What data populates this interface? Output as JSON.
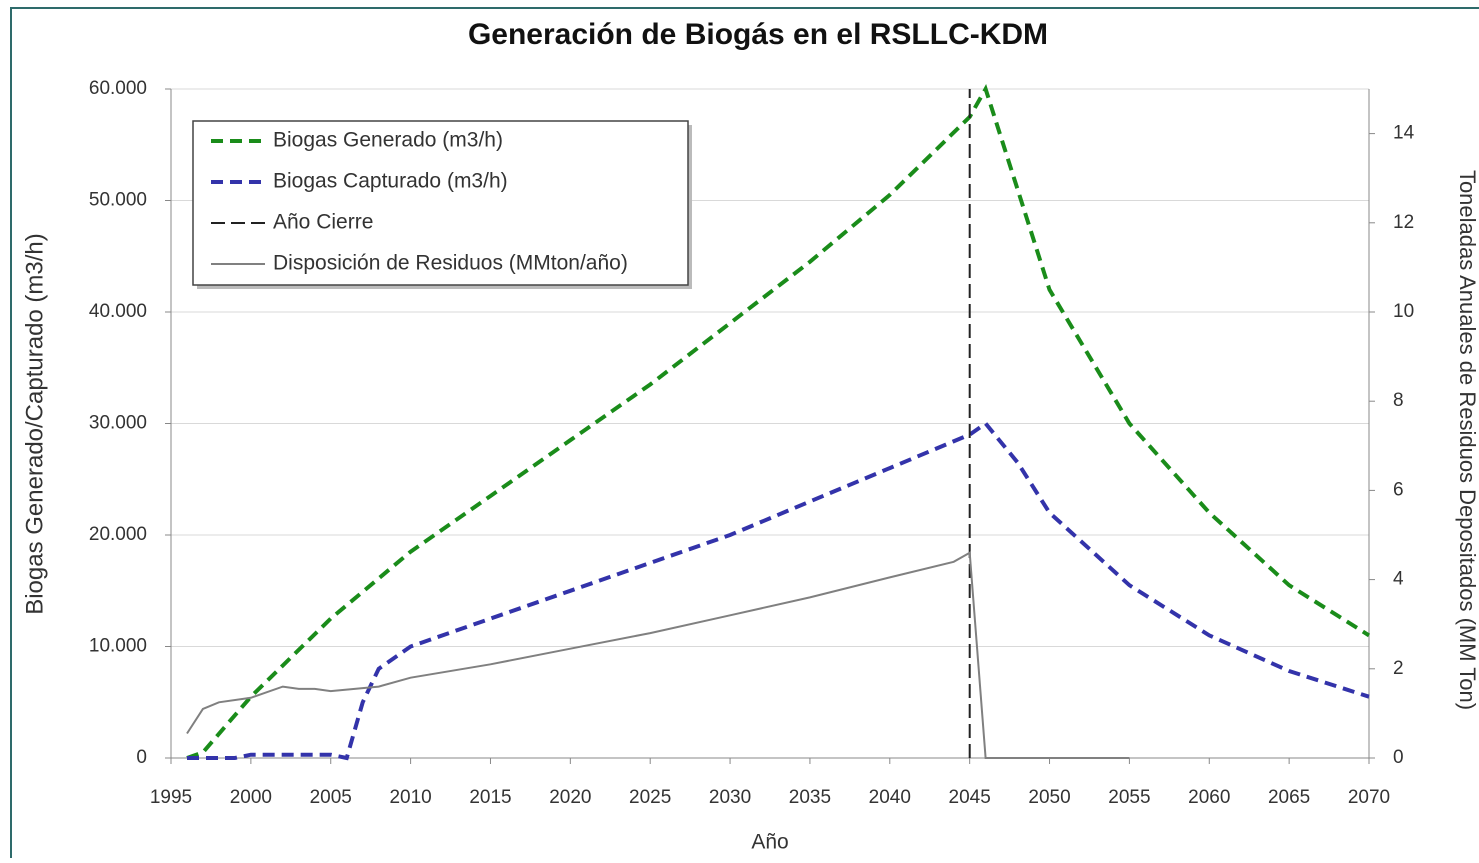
{
  "chart_data": {
    "type": "line",
    "title": "Generación de Biogás en el RSLLC-KDM",
    "x_label": "Año",
    "y_label": "Biogas Generado/Capturado (m3/h)",
    "y2_label": "Toneladas Anuales de Residuos Depositados (MM Ton)",
    "xlim": [
      1995,
      2070
    ],
    "xticks": [
      1995,
      2000,
      2005,
      2010,
      2015,
      2020,
      2025,
      2030,
      2035,
      2040,
      2045,
      2050,
      2055,
      2060,
      2065,
      2070
    ],
    "ylim": [
      0,
      60000
    ],
    "yticks": [
      0,
      {
        "value": 10000,
        "label": "10.000"
      },
      {
        "value": 20000,
        "label": "20.000"
      },
      {
        "value": 30000,
        "label": "30.000"
      },
      {
        "value": 40000,
        "label": "40.000"
      },
      {
        "value": 50000,
        "label": "50.000"
      },
      {
        "value": 60000,
        "label": "60.000"
      }
    ],
    "y2lim": [
      0,
      15
    ],
    "y2ticks": [
      0,
      2,
      4,
      6,
      8,
      10,
      12,
      14
    ],
    "grid": true,
    "legend": "upper left",
    "series": [
      {
        "name": "Biogas Generado (m3/h)",
        "color": "#1a8c1a",
        "style": "dashed-thick",
        "x": [
          1996,
          1997,
          2000,
          2005,
          2010,
          2015,
          2020,
          2025,
          2030,
          2035,
          2040,
          2045,
          2046,
          2048,
          2050,
          2055,
          2060,
          2065,
          2070
        ],
        "values": [
          0,
          500,
          5500,
          12500,
          18500,
          23500,
          28500,
          33500,
          39000,
          44500,
          50500,
          57500,
          60000,
          51000,
          42000,
          30000,
          22000,
          15500,
          11000
        ]
      },
      {
        "name": "Biogas Capturado (m3/h)",
        "color": "#3333aa",
        "style": "dashed-thick",
        "x": [
          1996,
          1999,
          2000,
          2005,
          2006,
          2007,
          2008,
          2010,
          2015,
          2020,
          2025,
          2030,
          2035,
          2040,
          2045,
          2046,
          2048,
          2050,
          2055,
          2060,
          2065,
          2070
        ],
        "values": [
          0,
          0,
          300,
          300,
          0,
          5000,
          8000,
          10000,
          12500,
          15000,
          17500,
          20000,
          23000,
          26000,
          29000,
          30000,
          26500,
          22000,
          15500,
          11000,
          7800,
          5500
        ]
      },
      {
        "name": "Año Cierre",
        "color": "#222222",
        "style": "dashed-thin",
        "x": [
          2045,
          2045
        ],
        "values": [
          0,
          60000
        ]
      },
      {
        "name": "Disposición de Residuos (MMton/año)",
        "color": "#808080",
        "style": "solid",
        "axis": "y2",
        "x": [
          1996,
          1997,
          1998,
          2000,
          2002,
          2003,
          2004,
          2005,
          2008,
          2010,
          2015,
          2020,
          2025,
          2030,
          2035,
          2040,
          2044,
          2045,
          2046,
          2055
        ],
        "values": [
          0.55,
          1.1,
          1.25,
          1.35,
          1.6,
          1.55,
          1.55,
          1.5,
          1.6,
          1.8,
          2.1,
          2.45,
          2.8,
          3.2,
          3.6,
          4.05,
          4.4,
          4.6,
          0,
          0
        ]
      }
    ]
  }
}
